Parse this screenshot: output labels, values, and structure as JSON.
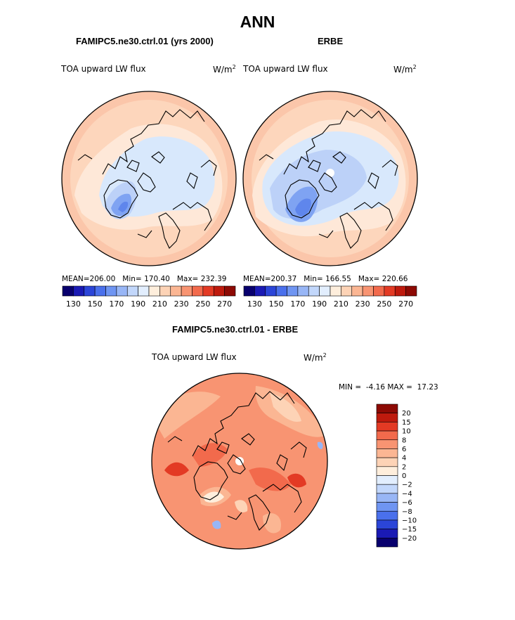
{
  "title": "ANN",
  "chart_data": [
    {
      "type": "heatmap",
      "projection": "north-polar-stereographic",
      "title": "FAMIPC5.ne30.ctrl.01 (yrs 2000)",
      "variable": "TOA upward LW flux",
      "units_label": "W/m",
      "units_power": "2",
      "stats": {
        "mean_label": "MEAN=",
        "mean": "206.00",
        "min_label": "Min=",
        "min": "170.40",
        "max_label": "Max=",
        "max": "232.39"
      },
      "colorbar": {
        "colors": [
          "#08006e",
          "#1a1ab4",
          "#2b45d8",
          "#4a70ec",
          "#6f95f2",
          "#98b6f6",
          "#c2d7fb",
          "#e2eefe",
          "#feeedc",
          "#fdd3b6",
          "#fbb693",
          "#f89472",
          "#f26a4c",
          "#e33a24",
          "#be1a0d",
          "#8d0a04"
        ],
        "tick_labels": [
          "130",
          "150",
          "170",
          "190",
          "210",
          "230",
          "250",
          "270"
        ],
        "range": [
          120,
          280
        ]
      },
      "field": {
        "pole": 185,
        "polar_cap": 195,
        "midlat": 215,
        "rim": 225,
        "greenland_min": 172
      }
    },
    {
      "type": "heatmap",
      "projection": "north-polar-stereographic",
      "title": "ERBE",
      "variable": "TOA upward LW flux",
      "units_label": "W/m",
      "units_power": "2",
      "stats": {
        "mean_label": "MEAN=",
        "mean": "200.37",
        "min_label": "Min=",
        "min": "166.55",
        "max_label": "Max=",
        "max": "220.66"
      },
      "colorbar": {
        "colors": [
          "#08006e",
          "#1a1ab4",
          "#2b45d8",
          "#4a70ec",
          "#6f95f2",
          "#98b6f6",
          "#c2d7fb",
          "#e2eefe",
          "#feeedc",
          "#fdd3b6",
          "#fbb693",
          "#f89472",
          "#f26a4c",
          "#e33a24",
          "#be1a0d",
          "#8d0a04"
        ],
        "tick_labels": [
          "130",
          "150",
          "170",
          "190",
          "210",
          "230",
          "250",
          "270"
        ],
        "range": [
          120,
          280
        ]
      },
      "field": {
        "pole": 180,
        "polar_cap": 192,
        "midlat": 210,
        "rim": 218,
        "greenland_min": 168
      }
    },
    {
      "type": "heatmap",
      "projection": "north-polar-stereographic",
      "title": "FAMIPC5.ne30.ctrl.01 - ERBE",
      "variable": "TOA upward LW flux",
      "units_label": "W/m",
      "units_power": "2",
      "stats": {
        "min_label": "MIN =",
        "min": "-4.16",
        "max_label": "MAX =",
        "max": "17.23"
      },
      "colorbar": {
        "colors": [
          "#08006e",
          "#1a1ab4",
          "#2b45d8",
          "#4a70ec",
          "#6f95f2",
          "#98b6f6",
          "#c2d7fb",
          "#e2eefe",
          "#feeedc",
          "#fdd3b6",
          "#fbb693",
          "#f89472",
          "#f26a4c",
          "#e33a24",
          "#be1a0d",
          "#8d0a04"
        ],
        "tick_labels": [
          "20",
          "15",
          "10",
          "8",
          "6",
          "4",
          "2",
          "0",
          "−2",
          "−4",
          "−6",
          "−8",
          "−10",
          "−15",
          "−20"
        ],
        "levels": [
          -20,
          -15,
          -10,
          -8,
          -6,
          -4,
          -2,
          0,
          2,
          4,
          6,
          8,
          10,
          15,
          20
        ]
      }
    }
  ]
}
